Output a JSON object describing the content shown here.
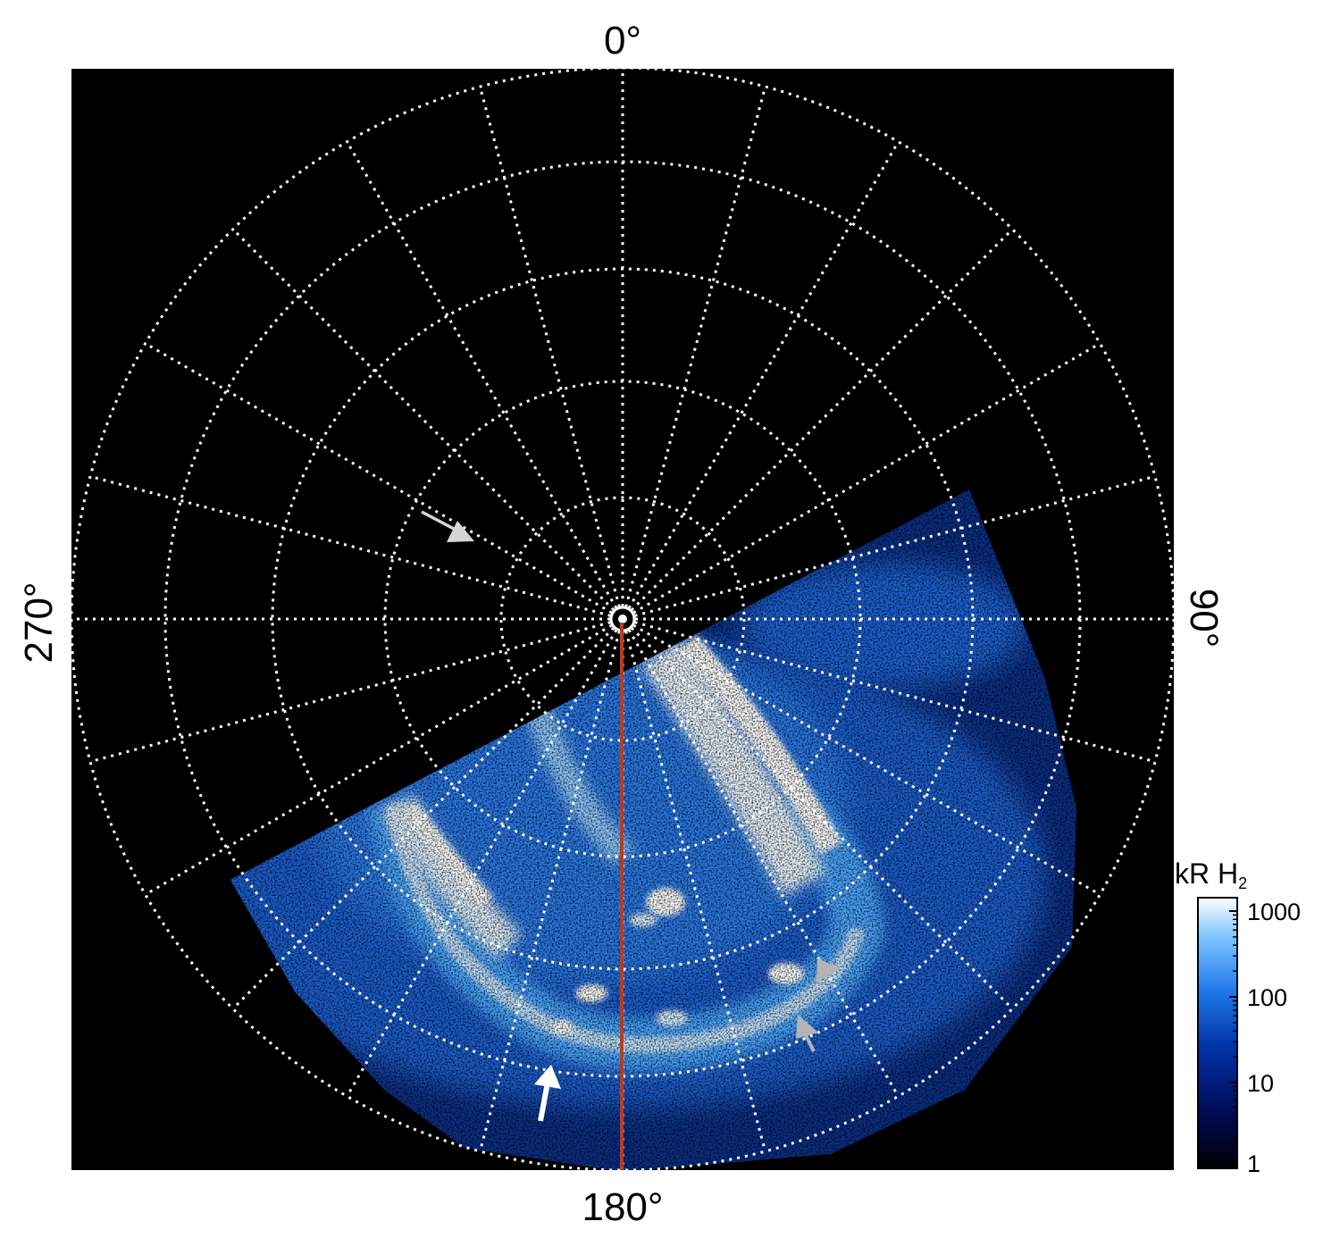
{
  "polar_plot": {
    "labels": {
      "top": "0°",
      "right": "90°",
      "bottom": "180°",
      "left": "270°"
    },
    "colorbar": {
      "unit": "kR H",
      "unit_subscript": "2",
      "ticks": [
        "1",
        "10",
        "100",
        "1000"
      ]
    },
    "colors": {
      "background": "#000000",
      "grid": "#ffffff",
      "meridian_line": "#c0391b",
      "arrow_white": "#ffffff",
      "arrow_gray": "#b4b4b4",
      "aurora_dim": "#0a2a7a",
      "aurora_mid": "#2b86f0",
      "aurora_bright": "#e8f4ff"
    }
  }
}
